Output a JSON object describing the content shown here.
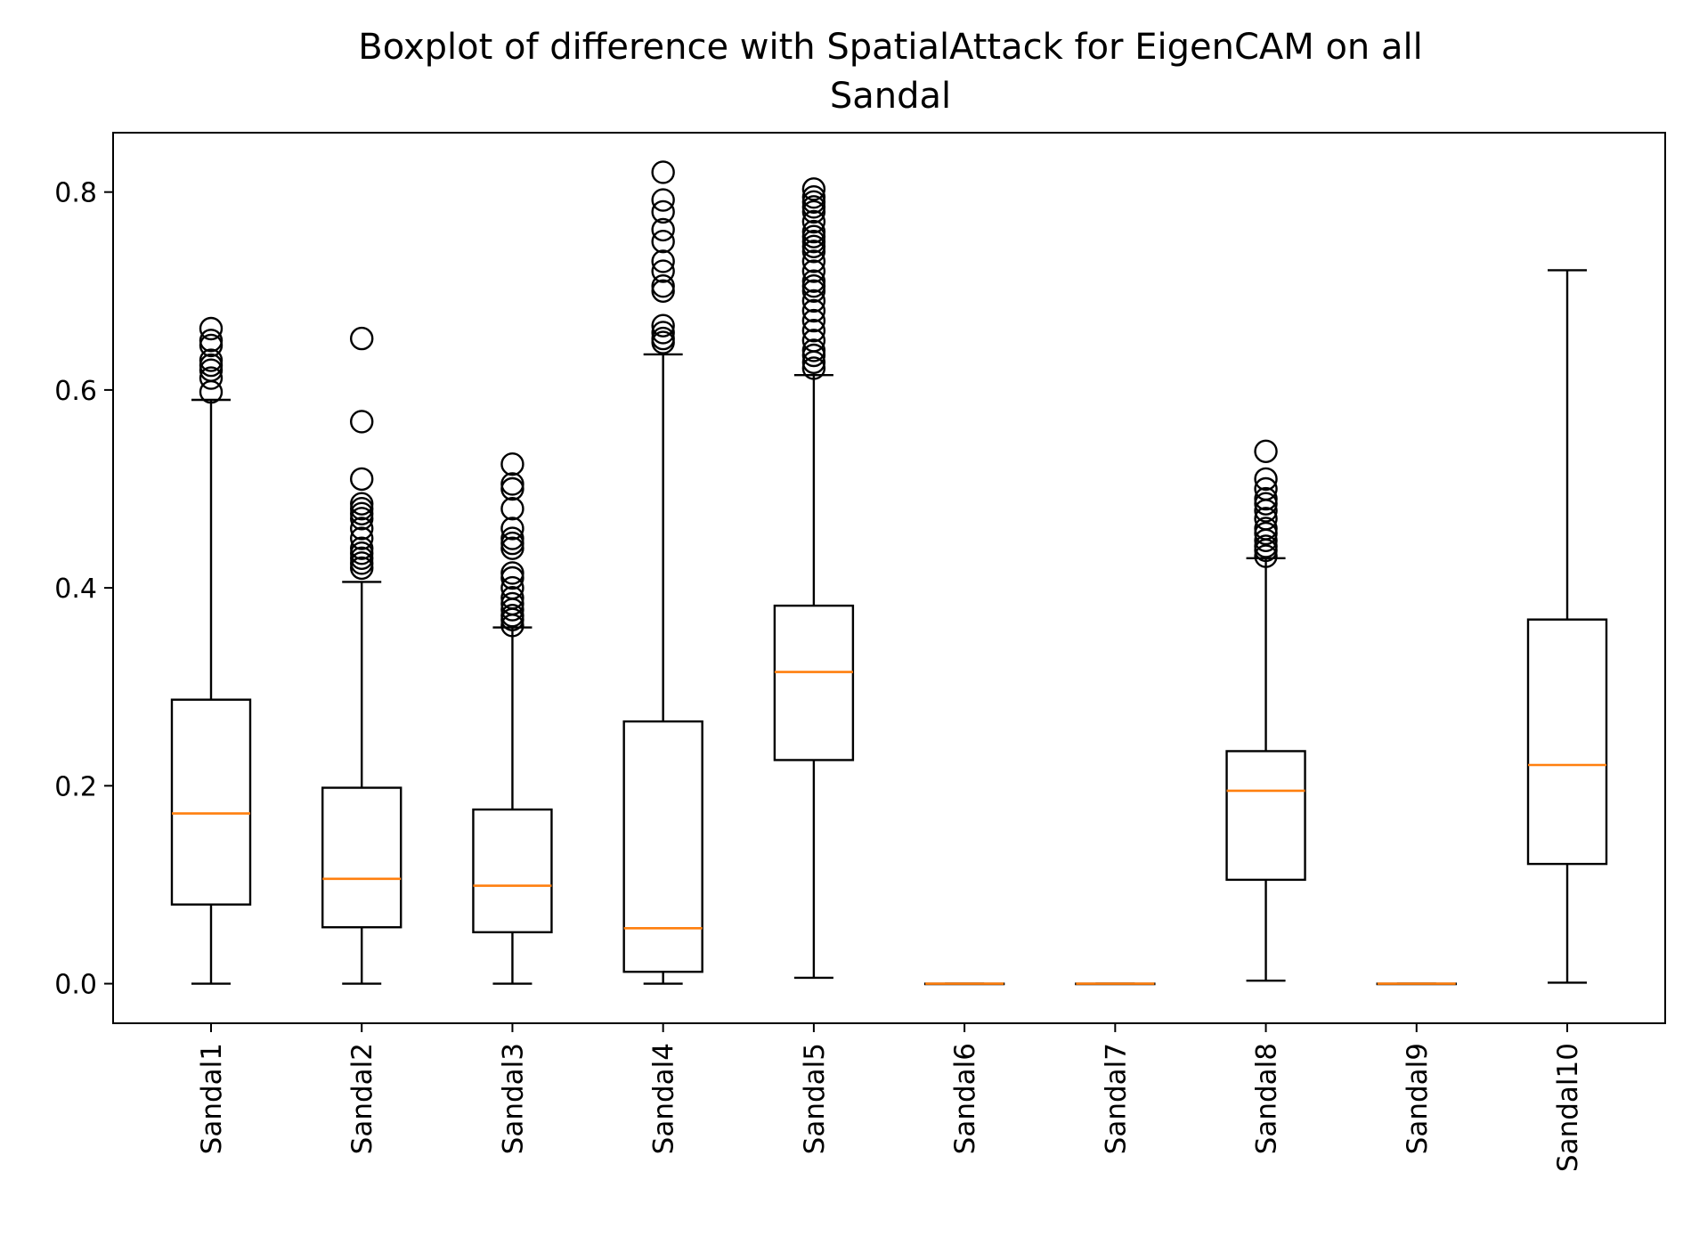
{
  "chart_data": {
    "type": "boxplot",
    "title_lines": [
      "Boxplot of difference with SpatialAttack for EigenCAM on all",
      "Sandal"
    ],
    "xlabel": "",
    "ylabel": "",
    "ylim": [
      -0.04,
      0.86
    ],
    "yticks": [
      0.0,
      0.2,
      0.4,
      0.6,
      0.8
    ],
    "ytick_labels": [
      "0.0",
      "0.2",
      "0.4",
      "0.6",
      "0.8"
    ],
    "median_color": "#ff7f0e",
    "box_color": "#000000",
    "categories": [
      "Sandal1",
      "Sandal2",
      "Sandal3",
      "Sandal4",
      "Sandal5",
      "Sandal6",
      "Sandal7",
      "Sandal8",
      "Sandal9",
      "Sandal10"
    ],
    "boxes": [
      {
        "name": "Sandal1",
        "whisker_low": 0.0,
        "q1": 0.08,
        "median": 0.172,
        "q3": 0.287,
        "whisker_high": 0.59,
        "outliers": [
          0.598,
          0.612,
          0.62,
          0.625,
          0.63,
          0.645,
          0.65,
          0.662
        ]
      },
      {
        "name": "Sandal2",
        "whisker_low": 0.0,
        "q1": 0.057,
        "median": 0.106,
        "q3": 0.198,
        "whisker_high": 0.406,
        "outliers": [
          0.42,
          0.425,
          0.43,
          0.435,
          0.44,
          0.45,
          0.46,
          0.47,
          0.475,
          0.48,
          0.485,
          0.51,
          0.568,
          0.652
        ]
      },
      {
        "name": "Sandal3",
        "whisker_low": 0.0,
        "q1": 0.052,
        "median": 0.099,
        "q3": 0.176,
        "whisker_high": 0.36,
        "outliers": [
          0.362,
          0.368,
          0.372,
          0.378,
          0.384,
          0.39,
          0.4,
          0.41,
          0.415,
          0.44,
          0.445,
          0.45,
          0.46,
          0.48,
          0.5,
          0.505,
          0.525
        ]
      },
      {
        "name": "Sandal4",
        "whisker_low": 0.0,
        "q1": 0.012,
        "median": 0.056,
        "q3": 0.265,
        "whisker_high": 0.636,
        "outliers": [
          0.648,
          0.652,
          0.658,
          0.665,
          0.7,
          0.705,
          0.72,
          0.73,
          0.75,
          0.762,
          0.78,
          0.792,
          0.82
        ]
      },
      {
        "name": "Sandal5",
        "whisker_low": 0.006,
        "q1": 0.226,
        "median": 0.315,
        "q3": 0.382,
        "whisker_high": 0.615,
        "outliers": [
          0.622,
          0.628,
          0.635,
          0.64,
          0.65,
          0.66,
          0.67,
          0.68,
          0.69,
          0.7,
          0.705,
          0.71,
          0.72,
          0.73,
          0.74,
          0.745,
          0.75,
          0.755,
          0.76,
          0.77,
          0.78,
          0.785,
          0.79,
          0.795,
          0.803
        ]
      },
      {
        "name": "Sandal6",
        "whisker_low": 0.0,
        "q1": 0.0,
        "median": 0.0,
        "q3": 0.0,
        "whisker_high": 0.0,
        "outliers": []
      },
      {
        "name": "Sandal7",
        "whisker_low": 0.0,
        "q1": 0.0,
        "median": 0.0,
        "q3": 0.0,
        "whisker_high": 0.0,
        "outliers": []
      },
      {
        "name": "Sandal8",
        "whisker_low": 0.003,
        "q1": 0.105,
        "median": 0.195,
        "q3": 0.235,
        "whisker_high": 0.43,
        "outliers": [
          0.432,
          0.438,
          0.442,
          0.448,
          0.455,
          0.46,
          0.47,
          0.478,
          0.485,
          0.49,
          0.5,
          0.51,
          0.538
        ]
      },
      {
        "name": "Sandal9",
        "whisker_low": 0.0,
        "q1": 0.0,
        "median": 0.0,
        "q3": 0.0,
        "whisker_high": 0.0,
        "outliers": []
      },
      {
        "name": "Sandal10",
        "whisker_low": 0.001,
        "q1": 0.121,
        "median": 0.221,
        "q3": 0.368,
        "whisker_high": 0.721,
        "outliers": []
      }
    ]
  }
}
